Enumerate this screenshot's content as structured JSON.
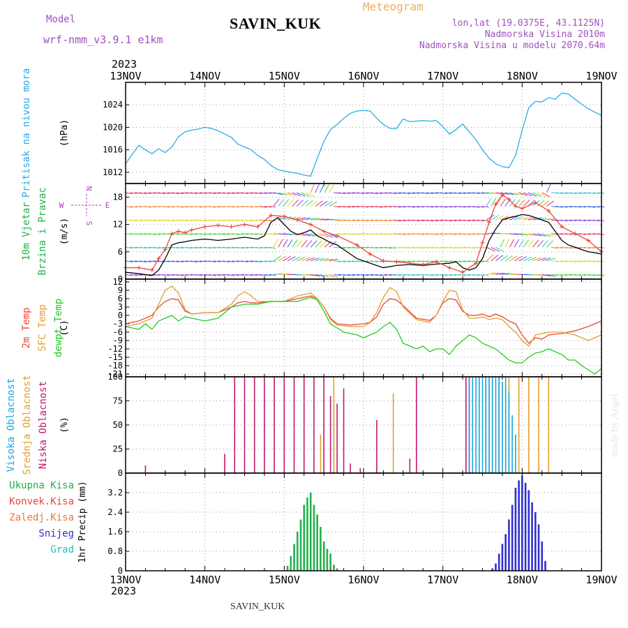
{
  "header": {
    "model_label": "Model",
    "model_name": "wrf-nmm_v3.9.1 e1km",
    "station": "SAVIN_KUK",
    "product": "Meteogram",
    "lonlat": "lon,lat (19.0375E, 43.1125N)",
    "elevation": "Nadmorska Visina 2010m",
    "model_elevation": "Nadmorska Visina u modelu 2070.64m",
    "year_top": "2023",
    "year_bottom": "2023",
    "footer_station": "SAVIN_KUK",
    "credit": "made by Angel"
  },
  "colors": {
    "pressure": "#29aee6",
    "wind_label": "#22b14c",
    "wind_dir_label": "#b040c0",
    "t2m": "#e8453c",
    "sfc": "#e0a030",
    "dewpt": "#22cc22",
    "high_cloud": "#1aa7e0",
    "mid_cloud": "#e0a030",
    "low_cloud": "#c0186c",
    "total_precip": "#22b14c",
    "conv_precip": "#e8453c",
    "frz_precip": "#f07830",
    "snow": "#3030d0",
    "hail": "#20c0c0",
    "header_purple": "#a050c0",
    "header_orange": "#e8b060"
  },
  "chart_data": [
    {
      "type": "line",
      "panel": "pressure",
      "ylabel": "(hPa)",
      "side_labels": [
        "Pritisak na nivou mora"
      ],
      "ylim": [
        1010,
        1028
      ],
      "yticks": [
        1012,
        1016,
        1020,
        1024
      ],
      "xlim": [
        0,
        144
      ],
      "x_tick_labels": [
        "13NOV",
        "14NOV",
        "15NOV",
        "16NOV",
        "17NOV",
        "18NOV",
        "19NOV"
      ],
      "grid": true,
      "series": [
        {
          "color_key": "pressure",
          "x": [
            0,
            2,
            4,
            6,
            8,
            10,
            12,
            14,
            16,
            18,
            20,
            22,
            24,
            26,
            28,
            30,
            32,
            34,
            36,
            38,
            40,
            42,
            44,
            46,
            48,
            50,
            52,
            54,
            56,
            58,
            60,
            62,
            64,
            66,
            68,
            70,
            72,
            74,
            76,
            78,
            80,
            82,
            84,
            86,
            88,
            90,
            92,
            94,
            96,
            98,
            100,
            102,
            104,
            106,
            108,
            110,
            112,
            114,
            116,
            118,
            120,
            122,
            124,
            126,
            128,
            130,
            132,
            134,
            136,
            138,
            140,
            142,
            144
          ],
          "y": [
            1013.5,
            1015.2,
            1016.8,
            1016.0,
            1015.3,
            1016.2,
            1015.5,
            1016.5,
            1018.3,
            1019.2,
            1019.5,
            1019.7,
            1020.0,
            1019.8,
            1019.4,
            1018.8,
            1018.2,
            1017.0,
            1016.5,
            1016.0,
            1015.0,
            1014.3,
            1013.2,
            1012.5,
            1012.2,
            1012.0,
            1011.8,
            1011.5,
            1011.3,
            1014.5,
            1017.5,
            1019.6,
            1020.5,
            1021.6,
            1022.5,
            1022.9,
            1023.0,
            1022.9,
            1021.6,
            1020.5,
            1019.8,
            1019.8,
            1021.5,
            1021.0,
            1021.1,
            1021.2,
            1021.1,
            1021.2,
            1020.1,
            1018.8,
            1019.6,
            1020.6,
            1019.2,
            1017.8,
            1016.0,
            1014.5,
            1013.5,
            1013.0,
            1012.8,
            1015.0,
            1019.5,
            1023.5,
            1024.6,
            1024.5,
            1025.3,
            1025.0,
            1026.1,
            1025.9,
            1025.0,
            1024.1,
            1023.3,
            1022.7,
            1022.1
          ]
        }
      ]
    },
    {
      "type": "line",
      "panel": "wind",
      "ylabel": "(m/s)",
      "side_labels": [
        "10m Vjetar",
        "Brzina i Pravac"
      ],
      "direction_key": [
        "N",
        "W",
        "E",
        "S"
      ],
      "ylim": [
        0,
        21
      ],
      "yticks": [
        0,
        6,
        12,
        18
      ],
      "xlim": [
        0,
        144
      ],
      "grid": true,
      "series": [
        {
          "name": "speed",
          "color_key": "black",
          "x": [
            0,
            4,
            8,
            10,
            12,
            14,
            16,
            18,
            20,
            24,
            28,
            32,
            36,
            40,
            42,
            44,
            46,
            48,
            50,
            52,
            54,
            56,
            58,
            60,
            62,
            64,
            66,
            70,
            74,
            78,
            82,
            86,
            90,
            94,
            98,
            100,
            102,
            104,
            106,
            108,
            110,
            112,
            114,
            116,
            118,
            120,
            122,
            124,
            126,
            128,
            130,
            132,
            134,
            136,
            138,
            140,
            142,
            144
          ],
          "y": [
            1.5,
            1.2,
            0.8,
            2.0,
            4.5,
            7.5,
            8.0,
            8.2,
            8.5,
            8.8,
            8.5,
            8.8,
            9.2,
            8.8,
            9.5,
            12.5,
            13.5,
            12.0,
            10.5,
            9.8,
            10.2,
            10.8,
            9.5,
            8.8,
            8.0,
            7.5,
            6.5,
            4.5,
            3.5,
            2.5,
            3.0,
            3.2,
            3.0,
            3.3,
            3.5,
            3.8,
            2.5,
            2.0,
            2.5,
            4.5,
            8.5,
            11.0,
            13.0,
            13.5,
            13.8,
            14.2,
            14.0,
            13.5,
            13.0,
            12.5,
            10.5,
            8.5,
            7.5,
            7.0,
            6.5,
            6.0,
            5.8,
            5.5
          ]
        },
        {
          "name": "gust",
          "color_key": "t2m",
          "x": [
            0,
            4,
            8,
            10,
            12,
            14,
            16,
            18,
            20,
            24,
            28,
            32,
            36,
            40,
            44,
            48,
            52,
            56,
            60,
            64,
            70,
            74,
            78,
            82,
            86,
            90,
            94,
            98,
            102,
            106,
            108,
            110,
            112,
            114,
            116,
            118,
            120,
            124,
            128,
            132,
            136,
            140,
            144
          ],
          "y": [
            2.5,
            2.5,
            2.0,
            4.5,
            6.5,
            10.0,
            10.5,
            10.2,
            10.8,
            11.5,
            11.8,
            11.5,
            12.0,
            11.5,
            14.0,
            13.8,
            13.0,
            12.0,
            10.5,
            9.5,
            7.5,
            5.5,
            4.0,
            3.8,
            3.5,
            3.2,
            3.8,
            2.5,
            1.5,
            3.5,
            8.0,
            12.5,
            16.5,
            18.5,
            17.5,
            16.0,
            15.5,
            16.8,
            15.0,
            11.5,
            10.0,
            8.5,
            6.0
          ]
        }
      ]
    },
    {
      "type": "line",
      "panel": "temperature",
      "ylabel": "(C)",
      "side_labels": [
        "2m Temp",
        "SFC Temp",
        "dewpt Temp"
      ],
      "ylim": [
        -22,
        13
      ],
      "yticks": [
        12,
        9,
        6,
        3,
        0,
        -3,
        -6,
        -9,
        -12,
        -15,
        -18,
        -21
      ],
      "xlim": [
        0,
        144
      ],
      "grid": true,
      "series": [
        {
          "name": "2m Temp",
          "color_key": "t2m",
          "x": [
            0,
            4,
            8,
            10,
            12,
            14,
            16,
            18,
            20,
            24,
            28,
            32,
            34,
            36,
            38,
            40,
            44,
            48,
            52,
            56,
            58,
            60,
            62,
            64,
            68,
            72,
            74,
            76,
            78,
            80,
            82,
            84,
            88,
            92,
            94,
            96,
            98,
            100,
            102,
            104,
            106,
            108,
            110,
            112,
            114,
            116,
            118,
            120,
            122,
            124,
            126,
            128,
            132,
            136,
            140,
            144
          ],
          "y": [
            -3,
            -2,
            0,
            3,
            5,
            6,
            5.5,
            1.5,
            0.5,
            1,
            1,
            3,
            4.5,
            5,
            4.5,
            4.5,
            5,
            5,
            6,
            7,
            6,
            3,
            -1,
            -3,
            -3.5,
            -3,
            -2.5,
            -0.5,
            4,
            6,
            5.5,
            3.5,
            -1,
            -1.8,
            0,
            4.5,
            6,
            5.5,
            1.5,
            0,
            0,
            0.5,
            -0.5,
            0.5,
            -0.5,
            -2,
            -3,
            -7,
            -10,
            -8,
            -8.5,
            -7,
            -6.5,
            -5.5,
            -4,
            -2
          ]
        },
        {
          "name": "SFC Temp",
          "color_key": "sfc",
          "x": [
            0,
            4,
            8,
            10,
            12,
            14,
            16,
            18,
            20,
            24,
            28,
            32,
            34,
            36,
            38,
            40,
            44,
            48,
            52,
            56,
            58,
            60,
            62,
            64,
            68,
            72,
            74,
            76,
            78,
            80,
            82,
            84,
            88,
            92,
            94,
            96,
            98,
            100,
            102,
            104,
            106,
            108,
            110,
            112,
            114,
            116,
            118,
            120,
            122,
            124,
            126,
            128,
            132,
            136,
            140,
            144
          ],
          "y": [
            -4,
            -3,
            -1,
            4,
            9,
            10.5,
            8,
            2,
            0.5,
            1,
            1,
            4,
            7,
            8.5,
            7,
            5,
            5,
            5,
            7,
            8,
            6,
            3,
            -1.5,
            -3.5,
            -4,
            -4,
            -2.5,
            1,
            6.5,
            10,
            8.5,
            3,
            -1.5,
            -2.5,
            0,
            5,
            9,
            8.5,
            2,
            -1,
            -1,
            -0.5,
            -1.5,
            -1,
            -1.5,
            -4,
            -6,
            -9,
            -11,
            -7,
            -6.5,
            -6,
            -6,
            -7,
            -9,
            -7
          ]
        },
        {
          "name": "dewpt Temp",
          "color_key": "dewpt",
          "x": [
            0,
            4,
            6,
            8,
            10,
            12,
            14,
            16,
            18,
            20,
            24,
            28,
            32,
            36,
            40,
            44,
            48,
            52,
            56,
            58,
            60,
            62,
            64,
            66,
            68,
            70,
            72,
            74,
            76,
            78,
            80,
            82,
            84,
            86,
            88,
            90,
            92,
            94,
            96,
            98,
            100,
            102,
            104,
            106,
            108,
            110,
            112,
            114,
            116,
            118,
            120,
            122,
            124,
            126,
            128,
            130,
            132,
            134,
            136,
            138,
            140,
            142,
            144
          ],
          "y": [
            -4,
            -5,
            -3,
            -5,
            -2,
            -1,
            0,
            -2,
            -0.5,
            -1,
            -2,
            -1,
            3,
            4,
            4,
            5,
            5,
            5,
            6.5,
            5.5,
            1.5,
            -3,
            -4.5,
            -6,
            -6.5,
            -7,
            -8,
            -7,
            -6,
            -4,
            -2.5,
            -5,
            -10,
            -11,
            -12,
            -11,
            -13,
            -12,
            -12,
            -14,
            -11,
            -9,
            -7,
            -8,
            -10,
            -11,
            -12,
            -14,
            -16,
            -17,
            -17,
            -15,
            -13.5,
            -13,
            -12,
            -13,
            -14,
            -16,
            -16,
            -18,
            -19.5,
            -21,
            -19
          ]
        }
      ]
    },
    {
      "type": "bar",
      "panel": "cloud",
      "ylabel": "(%)",
      "side_labels": [
        "Visoka Oblacnost",
        "Srednja Oblacnost",
        "Niska Oblacnost"
      ],
      "ylim": [
        0,
        100
      ],
      "yticks": [
        0,
        25,
        50,
        75,
        100
      ],
      "xlim": [
        0,
        144
      ],
      "grid": true,
      "series": [
        {
          "name": "Niska Oblacnost",
          "color_key": "low_cloud",
          "x": [
            6,
            30,
            33,
            36,
            39,
            42,
            45,
            48,
            51,
            54,
            57,
            60,
            62,
            64,
            66,
            68,
            71,
            76,
            86,
            88,
            103,
            104,
            109,
            111,
            113
          ],
          "y": [
            8,
            20,
            100,
            100,
            100,
            100,
            100,
            100,
            100,
            100,
            100,
            100,
            80,
            72,
            88,
            10,
            5,
            55,
            15,
            100,
            100,
            100,
            100,
            100,
            100
          ]
        },
        {
          "name": "Srednja Oblacnost",
          "color_key": "mid_cloud",
          "x": [
            59,
            63,
            81,
            107,
            110,
            113,
            116,
            119,
            122,
            125,
            128
          ],
          "y": [
            40,
            100,
            83,
            100,
            100,
            100,
            100,
            100,
            100,
            100,
            100
          ]
        },
        {
          "name": "Visoka Oblacnost",
          "color_key": "high_cloud",
          "x": [
            104,
            105,
            106,
            107,
            108,
            109,
            110,
            111,
            112,
            113,
            114,
            115,
            116,
            117,
            118
          ],
          "y": [
            100,
            100,
            100,
            100,
            100,
            100,
            100,
            100,
            100,
            100,
            95,
            100,
            85,
            60,
            40
          ]
        }
      ]
    },
    {
      "type": "bar",
      "panel": "precip",
      "ylabel": "1hr Precip (mm)",
      "side_labels": [
        "Ukupna Kisa",
        "Konvek.Kisa",
        "Zaledj.Kisa",
        "Snijeg",
        "Grad"
      ],
      "ylim": [
        0,
        4.0
      ],
      "yticks": [
        0,
        0.8,
        1.6,
        2.4,
        3.2
      ],
      "xlim": [
        0,
        144
      ],
      "x_tick_labels": [
        "13NOV",
        "14NOV",
        "15NOV",
        "16NOV",
        "17NOV",
        "18NOV",
        "19NOV"
      ],
      "grid": true,
      "series": [
        {
          "name": "Ukupna Kisa",
          "color_key": "total_precip",
          "x": [
            49,
            50,
            51,
            52,
            53,
            54,
            55,
            56,
            57,
            58,
            59,
            60,
            61,
            62,
            63,
            64
          ],
          "y": [
            0.2,
            0.6,
            1.1,
            1.6,
            2.1,
            2.7,
            3.0,
            3.2,
            2.7,
            2.3,
            1.8,
            1.2,
            0.9,
            0.7,
            0.25,
            0.1
          ]
        },
        {
          "name": "Snijeg",
          "color_key": "snow",
          "x": [
            111,
            112,
            113,
            114,
            115,
            116,
            117,
            118,
            119,
            120,
            121,
            122,
            123,
            124,
            125,
            126,
            127
          ],
          "y": [
            0.1,
            0.3,
            0.7,
            1.1,
            1.5,
            2.1,
            2.7,
            3.4,
            3.7,
            3.9,
            3.6,
            3.3,
            2.8,
            2.4,
            1.9,
            1.2,
            0.4
          ]
        },
        {
          "name": "Konvek.Kisa",
          "color_key": "conv_precip",
          "x": [
            62
          ],
          "y": [
            0.1
          ]
        }
      ]
    }
  ]
}
